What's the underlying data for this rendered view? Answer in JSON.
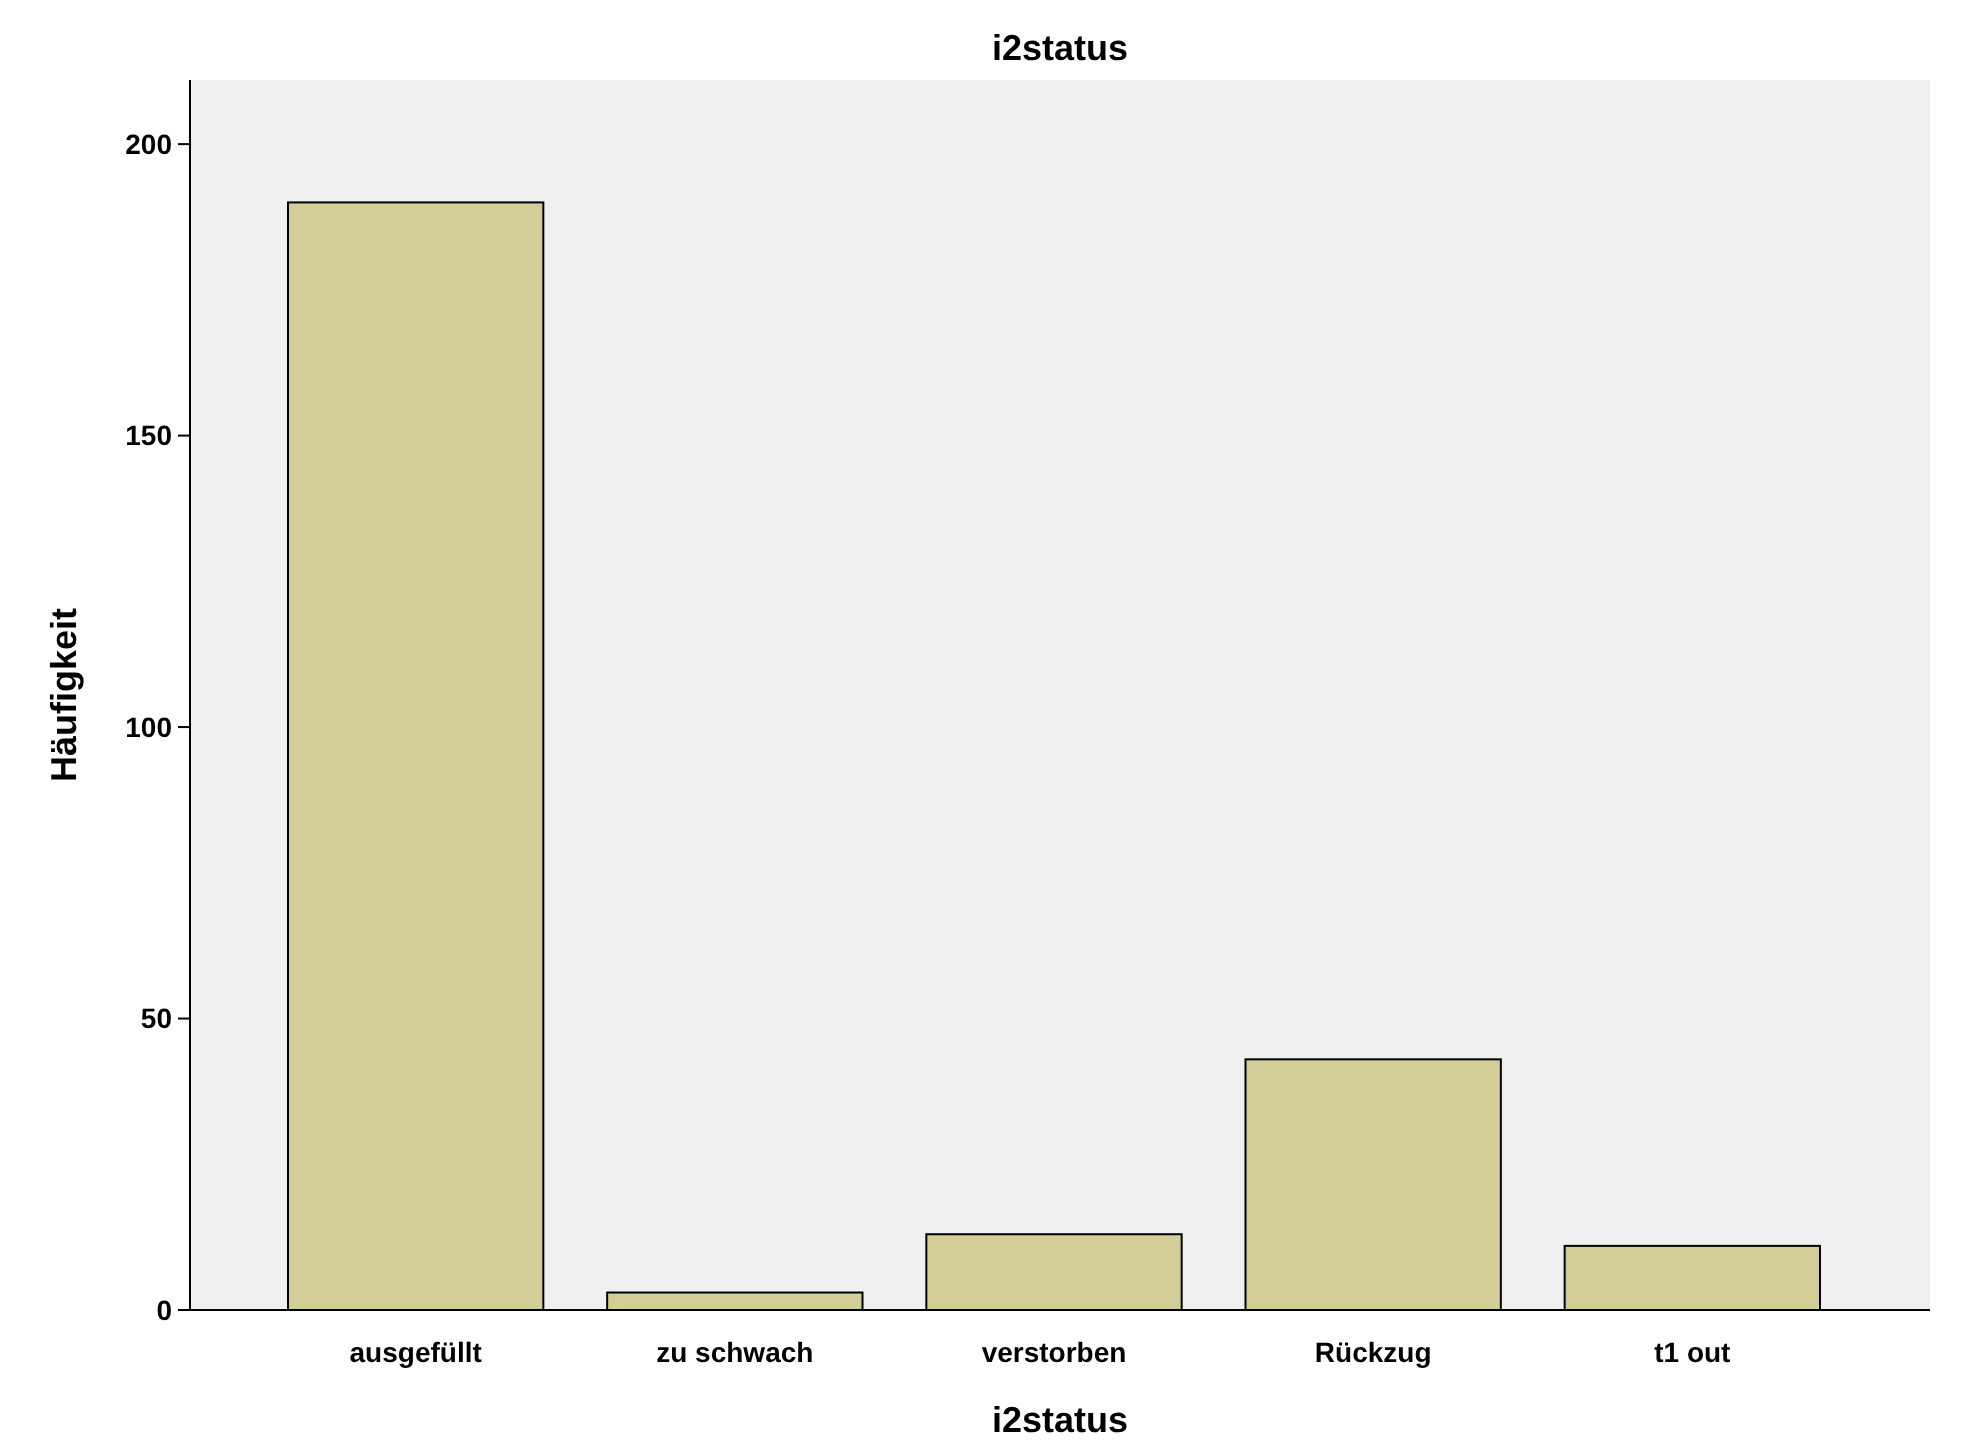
{
  "chart_data": {
    "type": "bar",
    "title": "i2status",
    "xlabel": "i2status",
    "ylabel": "Häufigkeit",
    "categories": [
      "ausgefüllt",
      "zu schwach",
      "verstorben",
      "Rückzug",
      "t1 out"
    ],
    "values": [
      190,
      3,
      13,
      43,
      11
    ],
    "color": "#d3ce97",
    "ylim": [
      0,
      211
    ],
    "yticks": [
      0,
      50,
      100,
      150,
      200
    ],
    "grid": false
  }
}
